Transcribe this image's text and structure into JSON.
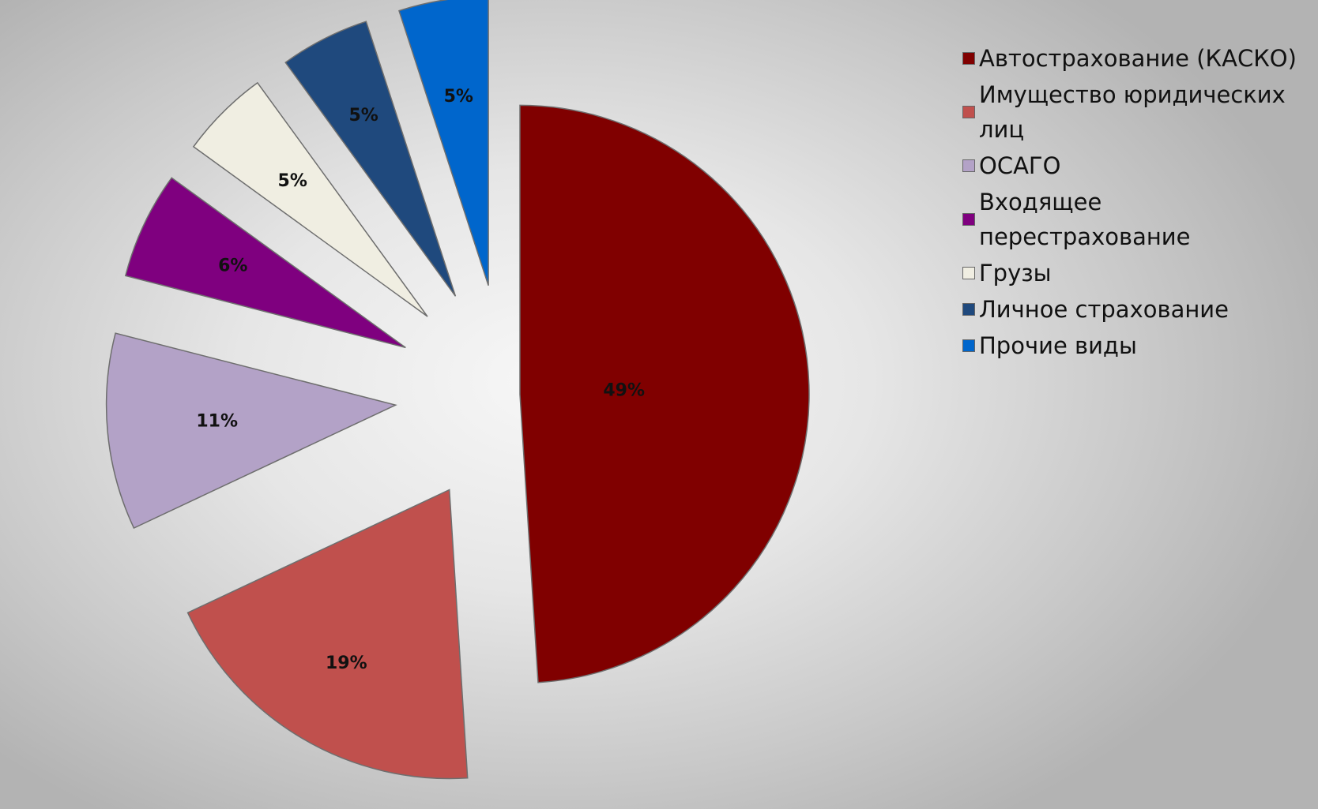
{
  "chart_data": {
    "type": "pie",
    "categories": [
      "Автострахование (КАСКО)",
      "Имущество юридических\nлиц",
      "ОСАГО",
      "Входящее\nперестрахование",
      "Грузы",
      "Личное страхование",
      "Прочие виды"
    ],
    "values": [
      49,
      19,
      11,
      6,
      5,
      5,
      5
    ],
    "labels": [
      "49%",
      "19%",
      "11%",
      "6%",
      "5%",
      "5%",
      "5%"
    ],
    "colors": [
      "#800000",
      "#c0504d",
      "#b3a2c7",
      "#7f007f",
      "#f0eee2",
      "#1f497d",
      "#0066cc"
    ],
    "exploded": true,
    "legend": "right"
  }
}
